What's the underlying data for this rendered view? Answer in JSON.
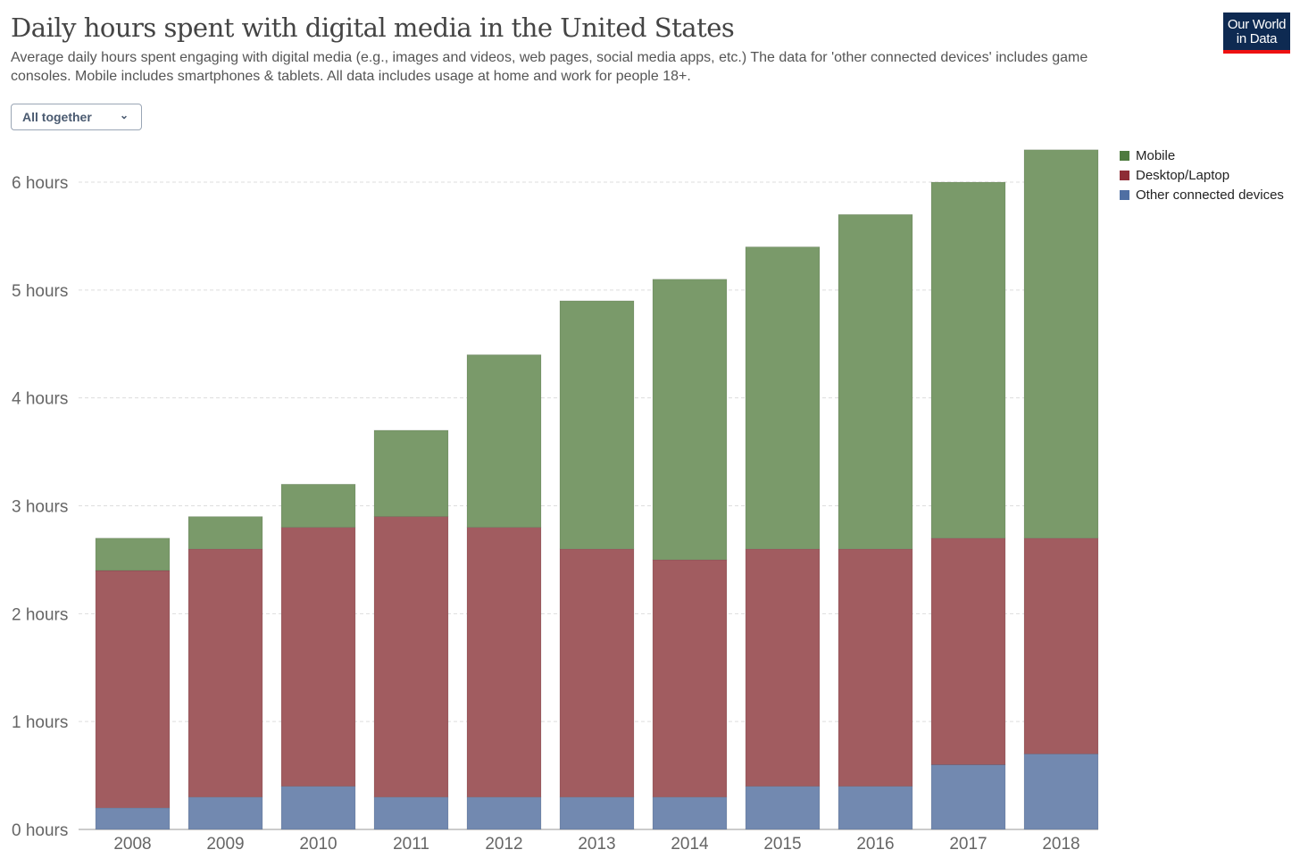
{
  "title": "Daily hours spent with digital media in the United States",
  "subtitle": "Average daily hours spent engaging with digital media (e.g., images and videos, web pages, social media apps, etc.) The data for 'other connected devices' includes game consoles. Mobile includes smartphones & tablets. All data includes usage at home and work for people 18+.",
  "dropdown": {
    "label": "All together"
  },
  "logo": "Our World in Data",
  "chart_data": {
    "type": "bar",
    "stacked": true,
    "categories": [
      "2008",
      "2009",
      "2010",
      "2011",
      "2012",
      "2013",
      "2014",
      "2015",
      "2016",
      "2017",
      "2018"
    ],
    "series": [
      {
        "name": "Other connected devices",
        "color": "#7289b0",
        "values": [
          0.2,
          0.3,
          0.4,
          0.3,
          0.3,
          0.3,
          0.3,
          0.4,
          0.4,
          0.6,
          0.7
        ]
      },
      {
        "name": "Desktop/Laptop",
        "color": "#a15c60",
        "values": [
          2.2,
          2.3,
          2.4,
          2.6,
          2.5,
          2.3,
          2.2,
          2.2,
          2.2,
          2.1,
          2.0
        ]
      },
      {
        "name": "Mobile",
        "color": "#7a9a6a",
        "values": [
          0.3,
          0.3,
          0.4,
          0.8,
          1.6,
          2.3,
          2.6,
          2.8,
          3.1,
          3.3,
          3.6
        ]
      }
    ],
    "legend": [
      {
        "name": "Mobile",
        "color": "#4e7b3f"
      },
      {
        "name": "Desktop/Laptop",
        "color": "#8e2c35"
      },
      {
        "name": "Other connected devices",
        "color": "#4f6fa3"
      }
    ],
    "yticks": [
      "0 hours",
      "1 hours",
      "2 hours",
      "3 hours",
      "4 hours",
      "5 hours",
      "6 hours"
    ],
    "ylim": [
      0,
      6.3
    ],
    "grid": true,
    "legend_position": "top-right"
  }
}
